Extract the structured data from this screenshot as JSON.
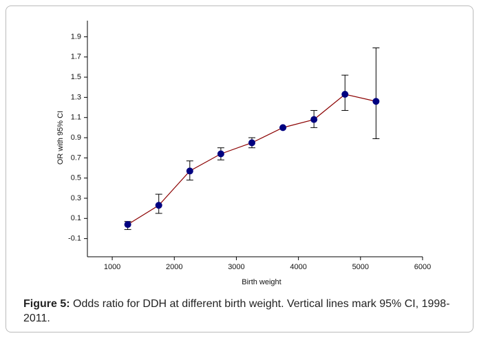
{
  "chart_data": {
    "type": "line",
    "x_label": "Birth weight",
    "y_label": "OR with 95% CI",
    "x": [
      1250,
      1750,
      2250,
      2750,
      3250,
      3750,
      4250,
      4750,
      5250
    ],
    "series": [
      {
        "color": "#000080",
        "line_color": "#8b0000",
        "values": [
          0.04,
          0.23,
          0.57,
          0.74,
          0.85,
          1.0,
          1.08,
          1.33,
          1.26
        ],
        "ci_low": [
          -0.01,
          0.15,
          0.48,
          0.68,
          0.8,
          1.0,
          1.0,
          1.17,
          0.89
        ],
        "ci_high": [
          0.07,
          0.34,
          0.67,
          0.8,
          0.9,
          1.0,
          1.17,
          1.52,
          1.79
        ]
      }
    ],
    "xlim": [
      600,
      6000
    ],
    "xticks": [
      1000,
      2000,
      3000,
      4000,
      5000,
      6000
    ],
    "ylim": [
      -0.28,
      2.06
    ],
    "yticks": [
      -0.1,
      0.1,
      0.3,
      0.5,
      0.7,
      0.9,
      1.1,
      1.3,
      1.5,
      1.7,
      1.9
    ]
  },
  "caption": {
    "label": "Figure 5:",
    "text": "Odds ratio for DDH at different birth weight. Vertical lines mark 95% CI, 1998-2011."
  }
}
